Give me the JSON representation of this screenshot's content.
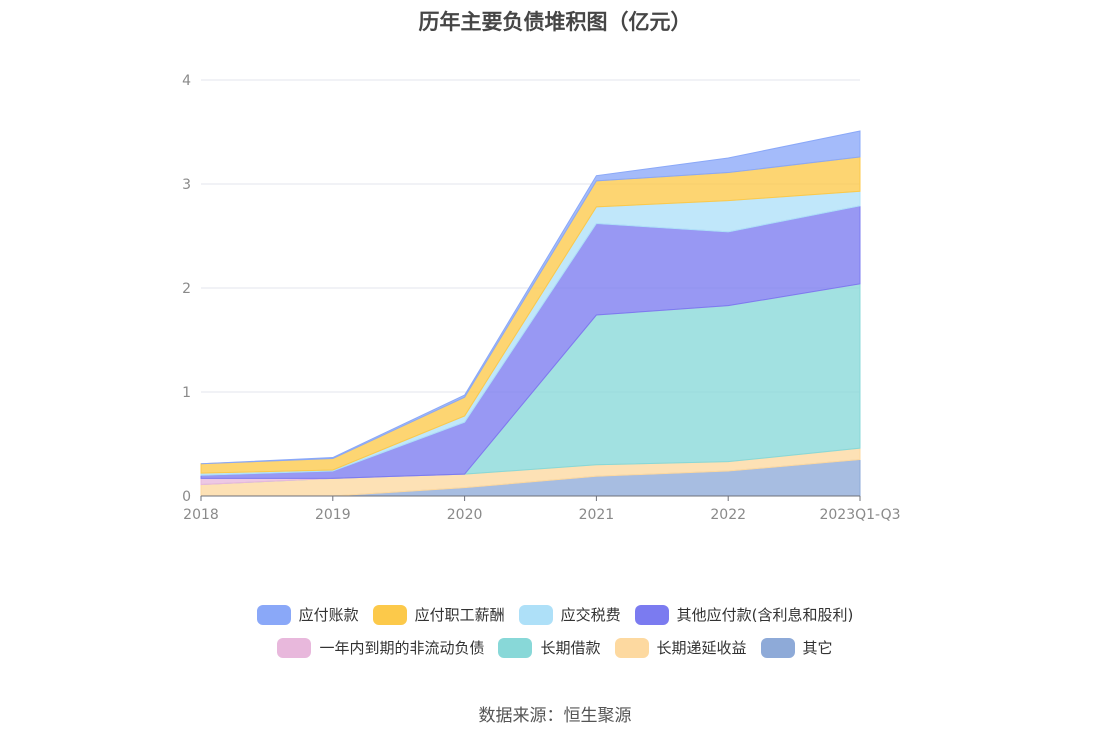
{
  "title": "历年主要负债堆积图（亿元）",
  "source": "数据来源：恒生聚源",
  "chart_data": {
    "type": "area",
    "stacked": true,
    "categories": [
      "2018",
      "2019",
      "2020",
      "2021",
      "2022",
      "2023Q1-Q3"
    ],
    "ylim": [
      0,
      4
    ],
    "yticks": [
      "0",
      "1",
      "2",
      "3",
      "4"
    ],
    "grid": true,
    "legend_position": "bottom",
    "series": [
      {
        "name": "其它",
        "color": "#8eaad8",
        "values": [
          0.0,
          0.0,
          0.08,
          0.19,
          0.24,
          0.35
        ]
      },
      {
        "name": "长期递延收益",
        "color": "#fdd9a0",
        "values": [
          0.11,
          0.17,
          0.13,
          0.11,
          0.09,
          0.11
        ]
      },
      {
        "name": "长期借款",
        "color": "#88d8d8",
        "values": [
          0.0,
          0.0,
          0.0,
          1.44,
          1.5,
          1.58
        ]
      },
      {
        "name": "一年内到期的非流动负债",
        "color": "#e8b8dc",
        "values": [
          0.06,
          0.0,
          0.0,
          0.0,
          0.0,
          0.0
        ]
      },
      {
        "name": "其他应付款(含利息和股利)",
        "color": "#7b7bf0",
        "values": [
          0.03,
          0.07,
          0.5,
          0.88,
          0.71,
          0.75
        ]
      },
      {
        "name": "应交税费",
        "color": "#aee0f8",
        "values": [
          0.02,
          0.01,
          0.06,
          0.16,
          0.3,
          0.14
        ]
      },
      {
        "name": "应付职工薪酬",
        "color": "#fcc94a",
        "values": [
          0.09,
          0.11,
          0.18,
          0.25,
          0.27,
          0.33
        ]
      },
      {
        "name": "应付账款",
        "color": "#8aa8f8",
        "values": [
          0.0,
          0.01,
          0.02,
          0.05,
          0.14,
          0.25
        ]
      }
    ],
    "legend_order": [
      "应付账款",
      "应付职工薪酬",
      "应交税费",
      "其他应付款(含利息和股利)",
      "一年内到期的非流动负债",
      "长期借款",
      "长期递延收益",
      "其它"
    ],
    "legend_colors": {
      "应付账款": "#8aa8f8",
      "应付职工薪酬": "#fcc94a",
      "应交税费": "#aee0f8",
      "其他应付款(含利息和股利)": "#7b7bf0",
      "一年内到期的非流动负债": "#e8b8dc",
      "长期借款": "#88d8d8",
      "长期递延收益": "#fdd9a0",
      "其它": "#8eaad8"
    }
  }
}
